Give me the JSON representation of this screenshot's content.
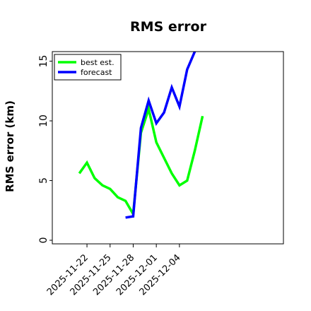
{
  "chart_data": {
    "type": "line",
    "title": "RMS error",
    "xlabel": "",
    "ylabel": "RMS error (km)",
    "ylim": [
      -0.3,
      15.8
    ],
    "xlim": [
      -3.5,
      26.5
    ],
    "yticks": [
      0,
      5,
      10,
      15
    ],
    "xticks": [
      {
        "x": 1,
        "label": "2025-11-22"
      },
      {
        "x": 4,
        "label": "2025-11-25"
      },
      {
        "x": 7,
        "label": "2025-11-28"
      },
      {
        "x": 10,
        "label": "2025-12-01"
      },
      {
        "x": 13,
        "label": "2025-12-04"
      }
    ],
    "grid": false,
    "legend_position": "top-left",
    "series": [
      {
        "name": "best est.",
        "color": "#00ff00",
        "x": [
          0,
          1,
          2,
          3,
          4,
          5,
          6,
          7,
          8,
          9,
          10,
          11,
          12,
          13,
          14,
          15,
          16
        ],
        "y": [
          5.6,
          6.5,
          5.2,
          4.6,
          4.3,
          3.6,
          3.3,
          2.2,
          9.0,
          11.0,
          8.2,
          6.9,
          5.6,
          4.6,
          5.0,
          7.5,
          10.4
        ]
      },
      {
        "name": "forecast",
        "color": "#0000ff",
        "x": [
          6,
          7,
          8,
          9,
          10,
          11,
          12,
          13,
          14,
          15
        ],
        "y": [
          1.9,
          2.0,
          9.4,
          11.7,
          9.8,
          10.7,
          12.8,
          11.2,
          14.3,
          15.8
        ]
      }
    ]
  }
}
